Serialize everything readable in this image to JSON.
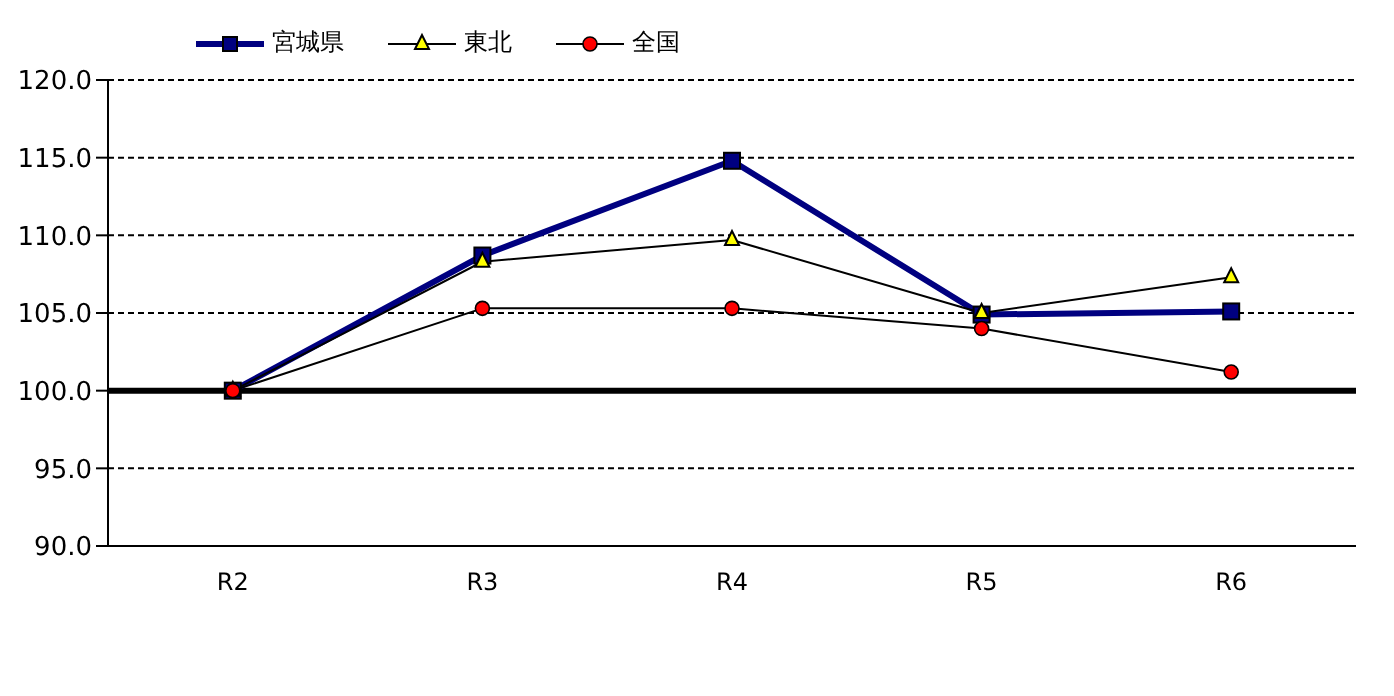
{
  "chart_data": {
    "type": "line",
    "categories": [
      "R2",
      "R3",
      "R4",
      "R5",
      "R6"
    ],
    "series": [
      {
        "name": "宮城県",
        "color": "#000080",
        "marker": "square",
        "values": [
          100.0,
          108.7,
          114.8,
          104.9,
          105.1
        ]
      },
      {
        "name": "東北",
        "color": "#ffff00",
        "marker": "triangle",
        "values": [
          100.0,
          108.3,
          109.7,
          105.0,
          107.3
        ]
      },
      {
        "name": "全国",
        "color": "#ff0000",
        "marker": "circle",
        "values": [
          100.0,
          105.3,
          105.3,
          104.0,
          101.2
        ]
      }
    ],
    "ylim": [
      90,
      120
    ],
    "yticks": [
      {
        "value": 90,
        "label": "90.0"
      },
      {
        "value": 95,
        "label": "95.0"
      },
      {
        "value": 100,
        "label": "100.0"
      },
      {
        "value": 105,
        "label": "105.0"
      },
      {
        "value": 110,
        "label": "110.0"
      },
      {
        "value": 115,
        "label": "115.0"
      },
      {
        "value": 120,
        "label": "120.0"
      }
    ],
    "ref_lines": [
      {
        "axis": "y",
        "value": 100,
        "color": "#000000"
      }
    ],
    "grid": "y",
    "legend": "top left"
  }
}
